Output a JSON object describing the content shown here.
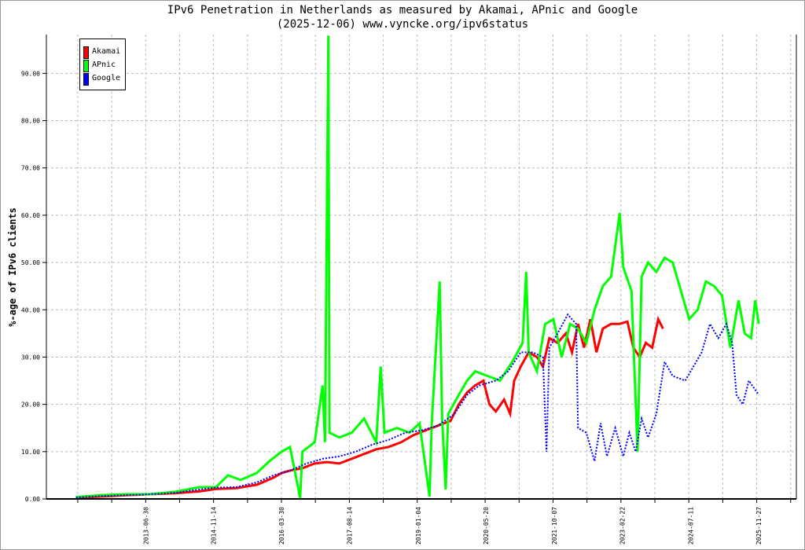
{
  "chart_data": {
    "type": "line",
    "title": "IPv6 Penetration in Netherlands as measured by Akamai, APnic and Google",
    "subtitle": "(2025-12-06) www.vyncke.org/ipv6status",
    "xlabel": "",
    "ylabel": "%-age of IPv6 clients",
    "xlim": [
      "2011-06-27",
      "2026-09-01"
    ],
    "ylim": [
      0,
      98.2
    ],
    "grid": true,
    "legend_position": "top-left",
    "x_tick_labels": [
      "2013-06-30",
      "2014-11-14",
      "2016-03-30",
      "2017-08-14",
      "2019-01-04",
      "2020-05-20",
      "2021-10-07",
      "2023-02-22",
      "2024-07-11",
      "2025-11-27"
    ],
    "y_tick_labels": [
      "0.00",
      "10.00",
      "20.00",
      "30.00",
      "40.00",
      "50.00",
      "60.00",
      "70.00",
      "80.00",
      "90.00"
    ],
    "y_ticks": [
      0,
      10,
      20,
      30,
      40,
      50,
      60,
      70,
      80,
      90
    ],
    "series": [
      {
        "name": "Akamai",
        "color": "#ff0000",
        "style": "solid",
        "points": [
          [
            "2012-02-01",
            0.3
          ],
          [
            "2012-08-01",
            0.5
          ],
          [
            "2013-02-01",
            0.8
          ],
          [
            "2013-08-01",
            1.0
          ],
          [
            "2014-02-01",
            1.2
          ],
          [
            "2014-08-01",
            1.6
          ],
          [
            "2014-12-01",
            2.1
          ],
          [
            "2015-05-01",
            2.3
          ],
          [
            "2015-10-01",
            3.0
          ],
          [
            "2016-02-01",
            4.5
          ],
          [
            "2016-04-01",
            5.5
          ],
          [
            "2016-06-01",
            6.0
          ],
          [
            "2016-09-01",
            6.5
          ],
          [
            "2016-12-01",
            7.5
          ],
          [
            "2017-03-01",
            7.8
          ],
          [
            "2017-06-01",
            7.5
          ],
          [
            "2017-09-01",
            8.5
          ],
          [
            "2017-12-01",
            9.5
          ],
          [
            "2018-03-01",
            10.5
          ],
          [
            "2018-06-01",
            11.0
          ],
          [
            "2018-09-01",
            12.0
          ],
          [
            "2018-12-01",
            13.5
          ],
          [
            "2019-03-01",
            14.5
          ],
          [
            "2019-06-01",
            15.5
          ],
          [
            "2019-09-01",
            16.5
          ],
          [
            "2019-11-01",
            20.0
          ],
          [
            "2020-01-01",
            22.5
          ],
          [
            "2020-03-01",
            24.0
          ],
          [
            "2020-05-01",
            25.0
          ],
          [
            "2020-06-15",
            20.0
          ],
          [
            "2020-08-01",
            18.5
          ],
          [
            "2020-10-01",
            21.0
          ],
          [
            "2020-11-15",
            18.0
          ],
          [
            "2020-12-15",
            25.0
          ],
          [
            "2021-02-01",
            28.0
          ],
          [
            "2021-04-01",
            31.0
          ],
          [
            "2021-06-01",
            30.0
          ],
          [
            "2021-07-15",
            28.0
          ],
          [
            "2021-09-01",
            34.0
          ],
          [
            "2021-11-01",
            33.0
          ],
          [
            "2022-01-01",
            35.0
          ],
          [
            "2022-02-15",
            31.0
          ],
          [
            "2022-04-01",
            37.0
          ],
          [
            "2022-05-15",
            32.0
          ],
          [
            "2022-07-01",
            38.0
          ],
          [
            "2022-08-15",
            31.0
          ],
          [
            "2022-10-01",
            36.0
          ],
          [
            "2022-12-01",
            37.0
          ],
          [
            "2023-02-01",
            37.0
          ],
          [
            "2023-04-01",
            37.5
          ],
          [
            "2023-05-15",
            32.0
          ],
          [
            "2023-07-01",
            30.0
          ],
          [
            "2023-08-15",
            33.0
          ],
          [
            "2023-10-01",
            32.0
          ],
          [
            "2023-11-15",
            38.0
          ],
          [
            "2023-12-20",
            36.0
          ]
        ]
      },
      {
        "name": "APnic",
        "color": "#00ff00",
        "style": "solid",
        "points": [
          [
            "2012-02-01",
            0.4
          ],
          [
            "2012-08-01",
            0.8
          ],
          [
            "2013-02-01",
            1.0
          ],
          [
            "2013-08-01",
            1.0
          ],
          [
            "2014-02-01",
            1.5
          ],
          [
            "2014-08-01",
            2.5
          ],
          [
            "2014-12-01",
            2.5
          ],
          [
            "2015-03-01",
            5.0
          ],
          [
            "2015-06-01",
            4.0
          ],
          [
            "2015-10-01",
            5.5
          ],
          [
            "2016-01-01",
            8.0
          ],
          [
            "2016-04-01",
            10.0
          ],
          [
            "2016-06-01",
            11.0
          ],
          [
            "2016-08-15",
            0.2
          ],
          [
            "2016-09-01",
            10.0
          ],
          [
            "2016-12-01",
            12.0
          ],
          [
            "2017-01-28",
            24.0
          ],
          [
            "2017-02-15",
            12.0
          ],
          [
            "2017-03-12",
            98.0
          ],
          [
            "2017-03-20",
            14.0
          ],
          [
            "2017-06-01",
            13.0
          ],
          [
            "2017-09-01",
            14.0
          ],
          [
            "2017-12-01",
            17.0
          ],
          [
            "2018-03-01",
            12.0
          ],
          [
            "2018-04-03",
            28.0
          ],
          [
            "2018-05-01",
            14.0
          ],
          [
            "2018-08-01",
            15.0
          ],
          [
            "2018-11-01",
            14.0
          ],
          [
            "2019-01-15",
            16.0
          ],
          [
            "2019-03-30",
            0.5
          ],
          [
            "2019-04-15",
            16.0
          ],
          [
            "2019-06-13",
            46.0
          ],
          [
            "2019-07-01",
            17.0
          ],
          [
            "2019-07-27",
            2.0
          ],
          [
            "2019-08-15",
            18.0
          ],
          [
            "2019-11-01",
            22.0
          ],
          [
            "2020-01-01",
            25.0
          ],
          [
            "2020-03-01",
            27.0
          ],
          [
            "2020-06-01",
            26.0
          ],
          [
            "2020-09-01",
            25.0
          ],
          [
            "2020-12-01",
            29.0
          ],
          [
            "2021-02-15",
            33.0
          ],
          [
            "2021-03-13",
            48.0
          ],
          [
            "2021-04-01",
            31.0
          ],
          [
            "2021-06-01",
            27.0
          ],
          [
            "2021-08-01",
            37.0
          ],
          [
            "2021-10-01",
            38.0
          ],
          [
            "2021-12-01",
            30.0
          ],
          [
            "2022-02-01",
            37.0
          ],
          [
            "2022-04-01",
            36.0
          ],
          [
            "2022-06-01",
            33.0
          ],
          [
            "2022-08-01",
            40.0
          ],
          [
            "2022-10-01",
            45.0
          ],
          [
            "2022-12-01",
            47.0
          ],
          [
            "2023-02-03",
            60.5
          ],
          [
            "2023-03-01",
            49.0
          ],
          [
            "2023-05-01",
            44.0
          ],
          [
            "2023-06-15",
            10.0
          ],
          [
            "2023-07-15",
            47.0
          ],
          [
            "2023-09-01",
            50.0
          ],
          [
            "2023-11-01",
            48.0
          ],
          [
            "2024-01-01",
            51.0
          ],
          [
            "2024-03-01",
            50.0
          ],
          [
            "2024-05-01",
            44.0
          ],
          [
            "2024-07-01",
            38.0
          ],
          [
            "2024-09-01",
            40.0
          ],
          [
            "2024-11-01",
            46.0
          ],
          [
            "2025-01-01",
            45.0
          ],
          [
            "2025-03-01",
            43.0
          ],
          [
            "2025-05-01",
            32.0
          ],
          [
            "2025-07-01",
            42.0
          ],
          [
            "2025-08-15",
            35.0
          ],
          [
            "2025-10-01",
            34.0
          ],
          [
            "2025-11-01",
            42.0
          ],
          [
            "2025-11-27",
            37.0
          ]
        ]
      },
      {
        "name": "Google",
        "color": "#0000ff",
        "style": "dotted",
        "points": [
          [
            "2012-02-01",
            0.3
          ],
          [
            "2012-08-01",
            0.6
          ],
          [
            "2013-02-01",
            0.8
          ],
          [
            "2013-08-01",
            1.0
          ],
          [
            "2014-02-01",
            1.3
          ],
          [
            "2014-08-01",
            2.0
          ],
          [
            "2014-12-01",
            2.4
          ],
          [
            "2015-05-01",
            2.5
          ],
          [
            "2015-10-01",
            3.5
          ],
          [
            "2016-02-01",
            5.0
          ],
          [
            "2016-06-01",
            6.0
          ],
          [
            "2016-10-01",
            7.5
          ],
          [
            "2017-02-01",
            8.5
          ],
          [
            "2017-06-01",
            9.0
          ],
          [
            "2017-10-01",
            10.0
          ],
          [
            "2018-02-01",
            11.5
          ],
          [
            "2018-06-01",
            12.5
          ],
          [
            "2018-10-01",
            14.0
          ],
          [
            "2019-02-01",
            14.5
          ],
          [
            "2019-06-01",
            15.5
          ],
          [
            "2019-10-01",
            18.0
          ],
          [
            "2020-01-01",
            22.0
          ],
          [
            "2020-04-01",
            24.0
          ],
          [
            "2020-08-01",
            25.0
          ],
          [
            "2020-11-01",
            27.0
          ],
          [
            "2021-02-01",
            31.0
          ],
          [
            "2021-05-01",
            31.0
          ],
          [
            "2021-07-15",
            30.0
          ],
          [
            "2021-08-11",
            10.0
          ],
          [
            "2021-09-01",
            32.0
          ],
          [
            "2021-11-01",
            35.0
          ],
          [
            "2022-01-15",
            39.0
          ],
          [
            "2022-03-18",
            37.0
          ],
          [
            "2022-04-01",
            15.0
          ],
          [
            "2022-06-01",
            14.0
          ],
          [
            "2022-08-01",
            8.0
          ],
          [
            "2022-09-15",
            16.0
          ],
          [
            "2022-11-01",
            9.0
          ],
          [
            "2023-01-01",
            15.0
          ],
          [
            "2023-03-01",
            9.0
          ],
          [
            "2023-04-15",
            14.0
          ],
          [
            "2023-06-01",
            10.0
          ],
          [
            "2023-07-15",
            17.0
          ],
          [
            "2023-09-01",
            13.0
          ],
          [
            "2023-11-01",
            18.0
          ],
          [
            "2024-01-01",
            29.0
          ],
          [
            "2024-03-01",
            26.0
          ],
          [
            "2024-06-01",
            25.0
          ],
          [
            "2024-08-01",
            28.0
          ],
          [
            "2024-10-01",
            31.0
          ],
          [
            "2024-12-01",
            37.0
          ],
          [
            "2025-02-01",
            34.0
          ],
          [
            "2025-04-01",
            37.0
          ],
          [
            "2025-05-15",
            33.0
          ],
          [
            "2025-06-15",
            22.0
          ],
          [
            "2025-08-01",
            20.0
          ],
          [
            "2025-09-15",
            25.0
          ],
          [
            "2025-11-27",
            22.0
          ]
        ]
      }
    ]
  }
}
